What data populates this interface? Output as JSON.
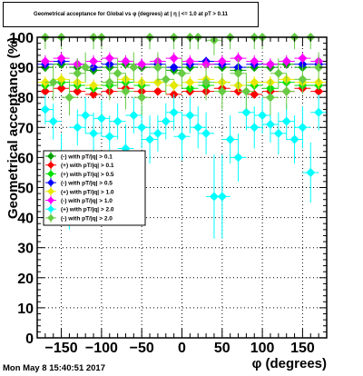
{
  "title": "Geometrical acceptance for Global vs φ (degrees) at | η | <= 1.0 at pT > 0.11",
  "timestamp": "Mon May  8 15:40:51 2017",
  "colors": {
    "frame": "#000000",
    "grid": "#000000",
    "background": "#ffffff"
  },
  "chart_data": {
    "type": "scatter",
    "title": "Geometrical acceptance for Global vs φ (degrees) at | η | <= 1.0 at pT > 0.11",
    "xlabel": "φ (degrees)",
    "ylabel": "Geometrical acceptance (%)",
    "xlim": [
      -180,
      180
    ],
    "ylim": [
      0,
      100
    ],
    "xticks": [
      -150,
      -100,
      -50,
      0,
      50,
      100,
      150
    ],
    "yticks": [
      0,
      10,
      20,
      30,
      40,
      50,
      60,
      70,
      80,
      90,
      100
    ],
    "grid": true,
    "legend_position": "middle-left",
    "series": [
      {
        "name": "(-) with pT/|q| > 0.1",
        "color": "#00a000",
        "marker": "diamond-filled",
        "x": [
          -170,
          -150,
          -130,
          -110,
          -90,
          -70,
          -50,
          -30,
          -10,
          10,
          30,
          50,
          70,
          90,
          110,
          130,
          150,
          170
        ],
        "y": [
          90,
          91,
          90,
          89,
          90,
          91,
          90,
          90,
          89,
          90,
          91,
          90,
          89,
          90,
          90,
          91,
          90,
          90
        ],
        "yerr": [
          1.5,
          1.5,
          1.5,
          1.5,
          1.5,
          1.5,
          1.5,
          1.5,
          1.5,
          1.5,
          1.5,
          1.5,
          1.5,
          1.5,
          1.5,
          1.5,
          1.5,
          1.5
        ]
      },
      {
        "name": "(+) with pT/|q| > 0.1",
        "color": "#ff0000",
        "marker": "diamond-filled",
        "x": [
          -170,
          -150,
          -130,
          -110,
          -90,
          -70,
          -50,
          -30,
          -10,
          10,
          30,
          50,
          70,
          90,
          110,
          130,
          150,
          170
        ],
        "y": [
          82,
          83,
          82,
          81,
          82,
          83,
          82,
          82,
          81,
          82,
          82,
          83,
          82,
          81,
          82,
          82,
          83,
          82
        ],
        "yerr": [
          1.2,
          1.2,
          1.2,
          1.2,
          1.2,
          1.2,
          1.2,
          1.2,
          1.2,
          1.2,
          1.2,
          1.2,
          1.2,
          1.2,
          1.2,
          1.2,
          1.2,
          1.2
        ]
      },
      {
        "name": "(+) with pT/|q| > 0.5",
        "color": "#00e000",
        "marker": "diamond-filled",
        "x": [
          -170,
          -150,
          -130,
          -110,
          -90,
          -70,
          -50,
          -30,
          -10,
          10,
          30,
          50,
          70,
          90,
          110,
          130,
          150,
          170
        ],
        "y": [
          84,
          85,
          84,
          83,
          84,
          85,
          84,
          85,
          84,
          83,
          84,
          85,
          84,
          84,
          83,
          85,
          84,
          84
        ],
        "yerr": [
          1.5,
          1.5,
          1.5,
          1.5,
          1.5,
          1.5,
          1.5,
          1.5,
          1.5,
          1.5,
          1.5,
          1.5,
          1.5,
          1.5,
          1.5,
          1.5,
          1.5,
          1.5
        ]
      },
      {
        "name": "(-) with pT/|q| > 0.5",
        "color": "#0000ff",
        "marker": "diamond-filled",
        "x": [
          -170,
          -150,
          -130,
          -110,
          -90,
          -70,
          -50,
          -30,
          -10,
          10,
          30,
          50,
          70,
          90,
          110,
          130,
          150,
          170
        ],
        "y": [
          91,
          92,
          91,
          90,
          91,
          92,
          91,
          91,
          90,
          91,
          92,
          91,
          90,
          91,
          91,
          92,
          91,
          91
        ],
        "yerr": [
          1.5,
          1.5,
          1.5,
          1.5,
          1.5,
          1.5,
          1.5,
          1.5,
          1.5,
          1.5,
          1.5,
          1.5,
          1.5,
          1.5,
          1.5,
          1.5,
          1.5,
          1.5
        ]
      },
      {
        "name": "(+) with pT/|q| > 1.0",
        "color": "#e8e800",
        "marker": "diamond-filled",
        "x": [
          -170,
          -150,
          -130,
          -110,
          -90,
          -70,
          -50,
          -30,
          -10,
          10,
          30,
          50,
          70,
          90,
          110,
          130,
          150,
          170
        ],
        "y": [
          85,
          86,
          85,
          84,
          85,
          86,
          85,
          85,
          84,
          85,
          86,
          85,
          84,
          85,
          85,
          86,
          85,
          85
        ],
        "yerr": [
          2,
          2,
          2,
          2,
          2,
          2,
          2,
          2,
          2,
          2,
          2,
          2,
          2,
          2,
          2,
          2,
          2,
          2
        ]
      },
      {
        "name": "(-) with pT/|q| > 1.0",
        "color": "#ff00ff",
        "marker": "diamond-filled",
        "x": [
          -170,
          -150,
          -130,
          -110,
          -90,
          -70,
          -50,
          -30,
          -10,
          10,
          30,
          50,
          70,
          90,
          110,
          130,
          150,
          170
        ],
        "y": [
          92,
          93,
          91,
          92,
          93,
          92,
          91,
          92,
          93,
          92,
          91,
          92,
          93,
          92,
          91,
          92,
          93,
          92
        ],
        "yerr": [
          2,
          2,
          2,
          2,
          2,
          2,
          2,
          2,
          2,
          2,
          2,
          2,
          2,
          2,
          2,
          2,
          2,
          2
        ]
      },
      {
        "name": "(+) with pT/|q| > 2.0",
        "color": "#00ffff",
        "marker": "diamond-filled",
        "x": [
          -170,
          -160,
          -150,
          -140,
          -130,
          -120,
          -110,
          -100,
          -90,
          -80,
          -70,
          -60,
          -50,
          -40,
          -30,
          -20,
          -10,
          0,
          10,
          20,
          30,
          40,
          50,
          60,
          70,
          80,
          90,
          100,
          110,
          120,
          130,
          140,
          150,
          160,
          170
        ],
        "y": [
          76,
          72,
          60,
          48,
          70,
          74,
          68,
          73,
          67,
          72,
          63,
          74,
          70,
          66,
          68,
          72,
          75,
          67,
          74,
          70,
          68,
          47,
          47,
          66,
          60,
          75,
          70,
          74,
          71,
          68,
          72,
          66,
          70,
          55,
          75
        ],
        "yerr": [
          5,
          6,
          8,
          12,
          6,
          6,
          7,
          6,
          7,
          6,
          8,
          6,
          7,
          8,
          6,
          6,
          6,
          8,
          6,
          7,
          7,
          14,
          14,
          8,
          8,
          6,
          7,
          6,
          6,
          7,
          6,
          8,
          7,
          10,
          6
        ]
      },
      {
        "name": "(-) with pT/|q| > 2.0",
        "color": "#66cc44",
        "marker": "diamond-filled",
        "x": [
          -170,
          -160,
          -150,
          -140,
          -130,
          -120,
          -110,
          -100,
          -90,
          -80,
          -70,
          -60,
          -50,
          -40,
          -30,
          -20,
          -10,
          0,
          10,
          20,
          30,
          40,
          50,
          60,
          70,
          80,
          90,
          100,
          110,
          120,
          130,
          140,
          150,
          160,
          170
        ],
        "y": [
          100,
          85,
          100,
          80,
          88,
          90,
          100,
          100,
          85,
          88,
          82,
          90,
          80,
          100,
          90,
          86,
          100,
          88,
          100,
          100,
          85,
          99,
          82,
          100,
          88,
          82,
          100,
          100,
          80,
          88,
          82,
          100,
          86,
          100,
          90
        ],
        "yerr": [
          4,
          6,
          4,
          6,
          5,
          5,
          4,
          4,
          6,
          5,
          6,
          5,
          6,
          4,
          5,
          5,
          4,
          5,
          4,
          4,
          6,
          5,
          6,
          4,
          5,
          6,
          4,
          4,
          6,
          5,
          6,
          4,
          5,
          4,
          5
        ]
      }
    ]
  }
}
